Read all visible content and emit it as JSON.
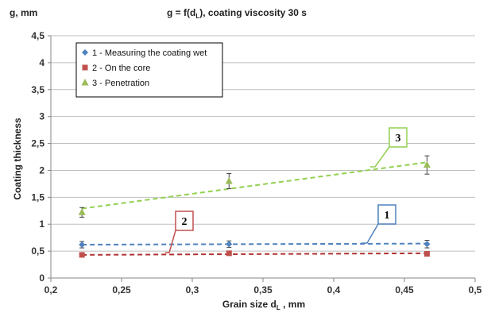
{
  "chart_data": {
    "type": "scatter",
    "title": "g = f(dL), coating viscosity 30 s",
    "title_main": "g = f(d",
    "title_sub": "L",
    "title_rest": "), coating viscosity 30 s",
    "y_unit_label": "g, mm",
    "ylabel": "Coating thickness",
    "xlabel": "Grain size dL , mm",
    "xlabel_main": "Grain size d",
    "xlabel_sub": "L",
    "xlabel_rest": " , mm",
    "xlim": [
      0.2,
      0.5
    ],
    "ylim": [
      0,
      4.5
    ],
    "x_ticks": [
      "0,2",
      "0,25",
      "0,3",
      "0,35",
      "0,4",
      "0,45",
      "0,5"
    ],
    "y_ticks": [
      "0",
      "0,5",
      "1",
      "1,5",
      "2",
      "2,5",
      "3",
      "3,5",
      "4",
      "4,5"
    ],
    "grid": "horizontal",
    "legend_position": "top-left",
    "series": [
      {
        "name": "1 - Measuring the coating wet",
        "marker": "diamond",
        "color": "#4f81bd",
        "trend_color": "#4f81bd",
        "x": [
          0.222,
          0.326,
          0.466
        ],
        "y": [
          0.62,
          0.63,
          0.63
        ],
        "err": [
          0.06,
          0.06,
          0.07
        ],
        "trend": [
          [
            0.222,
            0.62
          ],
          [
            0.466,
            0.64
          ]
        ],
        "callout": "1"
      },
      {
        "name": "2 - On the core",
        "marker": "square",
        "color": "#c0504d",
        "trend_color": "#b03030",
        "x": [
          0.222,
          0.326,
          0.466
        ],
        "y": [
          0.43,
          0.46,
          0.45
        ],
        "err": [
          0.02,
          0.02,
          0.02
        ],
        "trend": [
          [
            0.222,
            0.43
          ],
          [
            0.466,
            0.46
          ]
        ],
        "callout": "2"
      },
      {
        "name": "3 - Penetration",
        "marker": "triangle",
        "color": "#9bbb59",
        "trend_color": "#92d050",
        "x": [
          0.222,
          0.326,
          0.466
        ],
        "y": [
          1.22,
          1.8,
          2.1
        ],
        "err": [
          0.09,
          0.14,
          0.17
        ],
        "trend": [
          [
            0.222,
            1.29
          ],
          [
            0.466,
            2.15
          ]
        ],
        "callout": "3"
      }
    ]
  }
}
